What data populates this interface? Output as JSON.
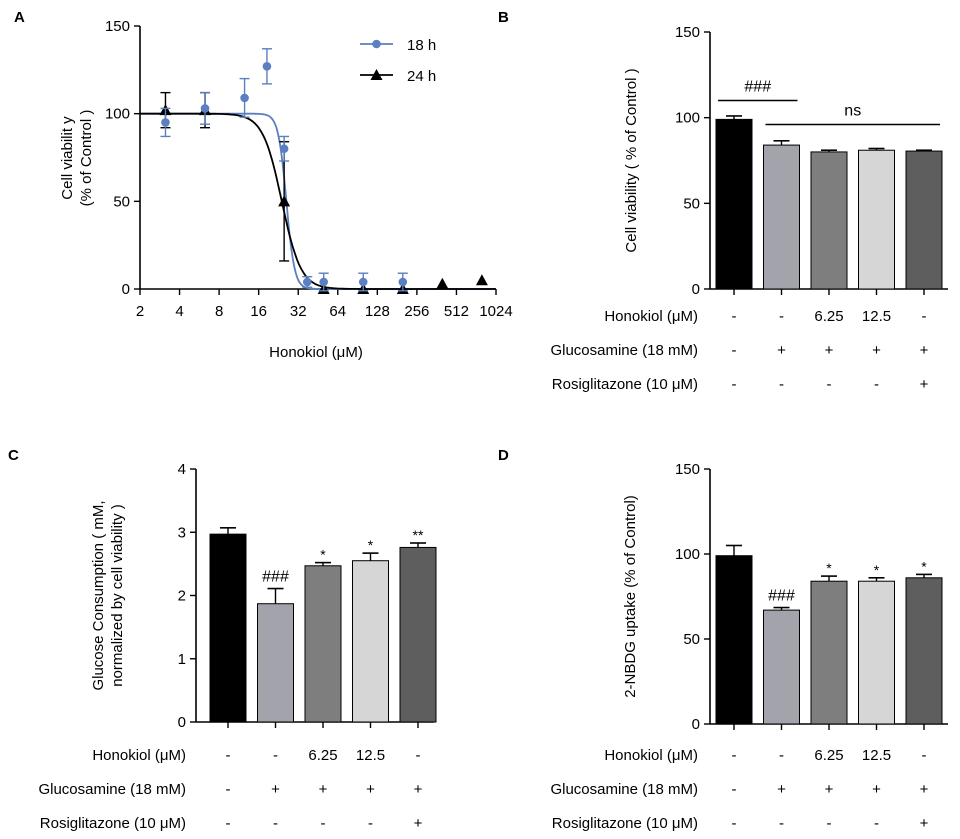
{
  "figure": {
    "background": "#ffffff",
    "colors": {
      "axis": "#000000",
      "s18": "#5b7fc0",
      "s24": "#000000"
    }
  },
  "chart_data": [
    {
      "panel": "A",
      "type": "scatter",
      "title": "",
      "xlabel": "Honokiol (μM)",
      "ylabel_lines": [
        "Cell viabilit y",
        "(% of Control )"
      ],
      "xscale": "log2",
      "xlim": [
        2,
        1024
      ],
      "ylim": [
        0,
        150
      ],
      "x_ticks": [
        2,
        4,
        8,
        16,
        32,
        64,
        128,
        256,
        512,
        1024
      ],
      "x_tick_labels": [
        "2",
        "4",
        "8",
        "16",
        "32",
        "64",
        "128",
        "256",
        "512",
        "1024"
      ],
      "y_ticks": [
        0,
        50,
        100,
        150
      ],
      "y_tick_labels": [
        "0",
        "50",
        "100",
        "150"
      ],
      "legend": {
        "position": "top-right",
        "entries": [
          "18 h",
          "24 h"
        ]
      },
      "series": [
        {
          "name": "18 h",
          "marker": "circle",
          "color": "#5b7fc0",
          "x": [
            3.125,
            6.25,
            12.5,
            18.5,
            25,
            37.5,
            50,
            100,
            200
          ],
          "y": [
            95,
            103,
            109,
            127,
            80,
            4,
            4,
            4,
            4
          ],
          "err": [
            8,
            9,
            11,
            10,
            7,
            3,
            5,
            5,
            5
          ],
          "fit": {
            "top": 100,
            "bottom": 0,
            "ec50": 26,
            "hill": 14
          }
        },
        {
          "name": "24 h",
          "marker": "triangle",
          "color": "#000000",
          "x": [
            3.125,
            6.25,
            25,
            50,
            100,
            200,
            400,
            800
          ],
          "y": [
            102,
            102,
            50,
            0,
            0,
            0,
            3,
            5
          ],
          "err": [
            10,
            10,
            34,
            0,
            0,
            0,
            0,
            0
          ],
          "fit": {
            "top": 100,
            "bottom": 0,
            "ec50": 24,
            "hill": 6
          }
        }
      ]
    },
    {
      "panel": "B",
      "type": "bar",
      "title": "",
      "ylabel_lines": [
        "Cell viability ( % of Control )"
      ],
      "ylim": [
        0,
        150
      ],
      "y_ticks": [
        0,
        50,
        100,
        150
      ],
      "y_tick_labels": [
        "0",
        "50",
        "100",
        "150"
      ],
      "values": [
        99,
        84,
        80,
        81,
        80.5
      ],
      "errors": [
        2,
        2.5,
        1,
        1,
        0.5
      ],
      "colors": [
        "#000000",
        "#a3a3ab",
        "#7e7e7e",
        "#d6d6d6",
        "#5e5e5e"
      ],
      "bar_annotations": [
        "",
        "",
        "",
        "",
        ""
      ],
      "brackets": [
        {
          "label": "###",
          "from": 0,
          "to": 1,
          "at": 110
        },
        {
          "label": "ns",
          "from": 1,
          "to": 4,
          "at": 96
        }
      ],
      "table": [
        {
          "label": "Honokiol (μM)",
          "cells": [
            "-",
            "-",
            "6.25",
            "12.5",
            "-"
          ]
        },
        {
          "label": "Glucosamine (18 mM)",
          "cells": [
            "-",
            "+",
            "+",
            "+",
            "+"
          ]
        },
        {
          "label": "Rosiglitazone  (10 μM)",
          "cells": [
            "-",
            "-",
            "-",
            "-",
            "+"
          ]
        }
      ]
    },
    {
      "panel": "C",
      "type": "bar",
      "title": "",
      "ylabel_lines": [
        "Glucose Consumption ( mM,",
        "normalized by cell viability )"
      ],
      "ylim": [
        0,
        4
      ],
      "y_ticks": [
        0,
        1,
        2,
        3,
        4
      ],
      "y_tick_labels": [
        "0",
        "1",
        "2",
        "3",
        "4"
      ],
      "values": [
        2.97,
        1.87,
        2.47,
        2.55,
        2.76
      ],
      "errors": [
        0.1,
        0.24,
        0.05,
        0.12,
        0.07
      ],
      "colors": [
        "#000000",
        "#a3a3ab",
        "#7e7e7e",
        "#d6d6d6",
        "#5e5e5e"
      ],
      "bar_annotations": [
        "",
        "###",
        "*",
        "*",
        "**"
      ],
      "brackets": [],
      "table": [
        {
          "label": "Honokiol (μM)",
          "cells": [
            "-",
            "-",
            "6.25",
            "12.5",
            "-"
          ]
        },
        {
          "label": "Glucosamine (18 mM)",
          "cells": [
            "-",
            "+",
            "+",
            "+",
            "+"
          ]
        },
        {
          "label": "Rosiglitazone  (10 μM)",
          "cells": [
            "-",
            "-",
            "-",
            "-",
            "+"
          ]
        }
      ]
    },
    {
      "panel": "D",
      "type": "bar",
      "title": "",
      "ylabel_lines": [
        "2-NBDG uptake  (% of Control)"
      ],
      "ylim": [
        0,
        150
      ],
      "y_ticks": [
        0,
        50,
        100,
        150
      ],
      "y_tick_labels": [
        "0",
        "50",
        "100",
        "150"
      ],
      "values": [
        99,
        67,
        84,
        84,
        86
      ],
      "errors": [
        6,
        1.5,
        3,
        2,
        2
      ],
      "colors": [
        "#000000",
        "#a3a3ab",
        "#7e7e7e",
        "#d6d6d6",
        "#5e5e5e"
      ],
      "bar_annotations": [
        "",
        "###",
        "*",
        "*",
        "*"
      ],
      "brackets": [],
      "table": [
        {
          "label": "Honokiol (μM)",
          "cells": [
            "-",
            "-",
            "6.25",
            "12.5",
            "-"
          ]
        },
        {
          "label": "Glucosamine (18 mM)",
          "cells": [
            "-",
            "+",
            "+",
            "+",
            "+"
          ]
        },
        {
          "label": "Rosiglitazone  (10 μM)",
          "cells": [
            "-",
            "-",
            "-",
            "-",
            "+"
          ]
        }
      ]
    }
  ]
}
